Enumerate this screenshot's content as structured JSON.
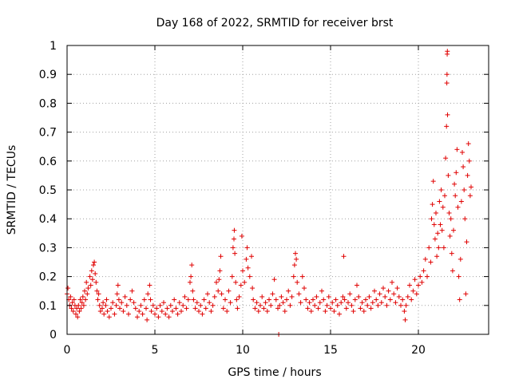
{
  "chart_data": {
    "type": "scatter",
    "title": "Day 168 of 2022, SRMTID for receiver brst",
    "xlabel": "GPS time / hours",
    "ylabel": "SRMTID / TECUs",
    "xlim": [
      0,
      24
    ],
    "ylim": [
      0,
      1
    ],
    "xticks": [
      0,
      5,
      10,
      15,
      20
    ],
    "xtick_labels": [
      "0",
      "5",
      "10",
      "15",
      "20"
    ],
    "yticks": [
      0,
      0.1,
      0.2,
      0.3,
      0.4,
      0.5,
      0.6,
      0.7,
      0.8,
      0.9,
      1
    ],
    "ytick_labels": [
      "0",
      "0.1",
      "0.2",
      "0.3",
      "0.4",
      "0.5",
      "0.6",
      "0.7",
      "0.8",
      "0.9",
      "1"
    ],
    "grid": true,
    "marker": "+",
    "color": "#e00000",
    "series": [
      {
        "name": "brst",
        "points": [
          [
            0.0,
            0.14
          ],
          [
            0.05,
            0.16
          ],
          [
            0.1,
            0.12
          ],
          [
            0.15,
            0.1
          ],
          [
            0.2,
            0.13
          ],
          [
            0.25,
            0.09
          ],
          [
            0.3,
            0.11
          ],
          [
            0.35,
            0.08
          ],
          [
            0.4,
            0.12
          ],
          [
            0.45,
            0.1
          ],
          [
            0.5,
            0.07
          ],
          [
            0.55,
            0.09
          ],
          [
            0.6,
            0.06
          ],
          [
            0.65,
            0.1
          ],
          [
            0.7,
            0.08
          ],
          [
            0.75,
            0.12
          ],
          [
            0.8,
            0.09
          ],
          [
            0.85,
            0.11
          ],
          [
            0.9,
            0.13
          ],
          [
            0.95,
            0.1
          ],
          [
            1.0,
            0.15
          ],
          [
            1.05,
            0.12
          ],
          [
            1.1,
            0.18
          ],
          [
            1.15,
            0.14
          ],
          [
            1.2,
            0.16
          ],
          [
            1.3,
            0.2
          ],
          [
            1.35,
            0.17
          ],
          [
            1.4,
            0.22
          ],
          [
            1.45,
            0.19
          ],
          [
            1.5,
            0.24
          ],
          [
            1.55,
            0.25
          ],
          [
            1.6,
            0.21
          ],
          [
            1.65,
            0.18
          ],
          [
            1.7,
            0.15
          ],
          [
            1.75,
            0.12
          ],
          [
            1.8,
            0.14
          ],
          [
            1.85,
            0.1
          ],
          [
            1.9,
            0.08
          ],
          [
            2.0,
            0.09
          ],
          [
            2.05,
            0.11
          ],
          [
            2.1,
            0.07
          ],
          [
            2.2,
            0.1
          ],
          [
            2.25,
            0.12
          ],
          [
            2.3,
            0.08
          ],
          [
            2.4,
            0.06
          ],
          [
            2.5,
            0.09
          ],
          [
            2.6,
            0.11
          ],
          [
            2.7,
            0.07
          ],
          [
            2.8,
            0.1
          ],
          [
            2.85,
            0.14
          ],
          [
            2.9,
            0.17
          ],
          [
            2.95,
            0.12
          ],
          [
            3.0,
            0.09
          ],
          [
            3.1,
            0.11
          ],
          [
            3.2,
            0.08
          ],
          [
            3.3,
            0.13
          ],
          [
            3.4,
            0.1
          ],
          [
            3.5,
            0.07
          ],
          [
            3.6,
            0.12
          ],
          [
            3.7,
            0.15
          ],
          [
            3.8,
            0.11
          ],
          [
            3.9,
            0.09
          ],
          [
            4.0,
            0.06
          ],
          [
            4.1,
            0.08
          ],
          [
            4.2,
            0.1
          ],
          [
            4.3,
            0.07
          ],
          [
            4.4,
            0.12
          ],
          [
            4.5,
            0.09
          ],
          [
            4.55,
            0.05
          ],
          [
            4.6,
            0.14
          ],
          [
            4.7,
            0.17
          ],
          [
            4.75,
            0.12
          ],
          [
            4.8,
            0.08
          ],
          [
            4.9,
            0.1
          ],
          [
            5.0,
            0.07
          ],
          [
            5.1,
            0.09
          ],
          [
            5.2,
            0.06
          ],
          [
            5.3,
            0.1
          ],
          [
            5.4,
            0.08
          ],
          [
            5.5,
            0.11
          ],
          [
            5.6,
            0.07
          ],
          [
            5.7,
            0.09
          ],
          [
            5.8,
            0.06
          ],
          [
            5.9,
            0.1
          ],
          [
            6.0,
            0.08
          ],
          [
            6.1,
            0.12
          ],
          [
            6.2,
            0.09
          ],
          [
            6.3,
            0.07
          ],
          [
            6.4,
            0.11
          ],
          [
            6.5,
            0.08
          ],
          [
            6.6,
            0.1
          ],
          [
            6.7,
            0.13
          ],
          [
            6.8,
            0.09
          ],
          [
            6.9,
            0.12
          ],
          [
            7.0,
            0.18
          ],
          [
            7.05,
            0.2
          ],
          [
            7.1,
            0.24
          ],
          [
            7.15,
            0.15
          ],
          [
            7.2,
            0.12
          ],
          [
            7.3,
            0.09
          ],
          [
            7.4,
            0.11
          ],
          [
            7.5,
            0.08
          ],
          [
            7.6,
            0.1
          ],
          [
            7.7,
            0.07
          ],
          [
            7.8,
            0.12
          ],
          [
            7.9,
            0.09
          ],
          [
            8.0,
            0.14
          ],
          [
            8.1,
            0.11
          ],
          [
            8.2,
            0.08
          ],
          [
            8.3,
            0.1
          ],
          [
            8.4,
            0.13
          ],
          [
            8.5,
            0.18
          ],
          [
            8.6,
            0.15
          ],
          [
            8.65,
            0.19
          ],
          [
            8.7,
            0.22
          ],
          [
            8.75,
            0.27
          ],
          [
            8.8,
            0.14
          ],
          [
            8.9,
            0.09
          ],
          [
            9.0,
            0.12
          ],
          [
            9.1,
            0.08
          ],
          [
            9.2,
            0.15
          ],
          [
            9.3,
            0.11
          ],
          [
            9.4,
            0.2
          ],
          [
            9.45,
            0.3
          ],
          [
            9.5,
            0.33
          ],
          [
            9.52,
            0.36
          ],
          [
            9.55,
            0.28
          ],
          [
            9.6,
            0.18
          ],
          [
            9.65,
            0.12
          ],
          [
            9.7,
            0.09
          ],
          [
            9.8,
            0.13
          ],
          [
            9.9,
            0.17
          ],
          [
            9.95,
            0.34
          ],
          [
            10.0,
            0.22
          ],
          [
            10.1,
            0.18
          ],
          [
            10.2,
            0.26
          ],
          [
            10.25,
            0.3
          ],
          [
            10.3,
            0.23
          ],
          [
            10.4,
            0.2
          ],
          [
            10.5,
            0.27
          ],
          [
            10.55,
            0.16
          ],
          [
            10.6,
            0.12
          ],
          [
            10.7,
            0.09
          ],
          [
            10.8,
            0.11
          ],
          [
            10.9,
            0.08
          ],
          [
            11.0,
            0.1
          ],
          [
            11.1,
            0.13
          ],
          [
            11.2,
            0.09
          ],
          [
            11.3,
            0.11
          ],
          [
            11.4,
            0.08
          ],
          [
            11.5,
            0.12
          ],
          [
            11.6,
            0.1
          ],
          [
            11.7,
            0.14
          ],
          [
            11.8,
            0.19
          ],
          [
            11.9,
            0.12
          ],
          [
            12.0,
            0.09
          ],
          [
            12.05,
            0.0
          ],
          [
            12.1,
            0.1
          ],
          [
            12.2,
            0.13
          ],
          [
            12.3,
            0.11
          ],
          [
            12.4,
            0.08
          ],
          [
            12.5,
            0.12
          ],
          [
            12.6,
            0.15
          ],
          [
            12.7,
            0.1
          ],
          [
            12.8,
            0.13
          ],
          [
            12.9,
            0.2
          ],
          [
            12.95,
            0.24
          ],
          [
            13.0,
            0.28
          ],
          [
            13.05,
            0.26
          ],
          [
            13.1,
            0.18
          ],
          [
            13.2,
            0.14
          ],
          [
            13.3,
            0.11
          ],
          [
            13.4,
            0.2
          ],
          [
            13.5,
            0.16
          ],
          [
            13.6,
            0.12
          ],
          [
            13.7,
            0.09
          ],
          [
            13.8,
            0.11
          ],
          [
            13.9,
            0.08
          ],
          [
            14.0,
            0.12
          ],
          [
            14.1,
            0.1
          ],
          [
            14.2,
            0.13
          ],
          [
            14.3,
            0.09
          ],
          [
            14.4,
            0.11
          ],
          [
            14.5,
            0.15
          ],
          [
            14.6,
            0.12
          ],
          [
            14.7,
            0.08
          ],
          [
            14.8,
            0.1
          ],
          [
            14.9,
            0.13
          ],
          [
            15.0,
            0.09
          ],
          [
            15.1,
            0.11
          ],
          [
            15.2,
            0.08
          ],
          [
            15.3,
            0.12
          ],
          [
            15.4,
            0.1
          ],
          [
            15.5,
            0.07
          ],
          [
            15.6,
            0.11
          ],
          [
            15.7,
            0.13
          ],
          [
            15.75,
            0.27
          ],
          [
            15.8,
            0.12
          ],
          [
            15.9,
            0.09
          ],
          [
            16.0,
            0.11
          ],
          [
            16.1,
            0.14
          ],
          [
            16.2,
            0.1
          ],
          [
            16.3,
            0.08
          ],
          [
            16.4,
            0.12
          ],
          [
            16.5,
            0.17
          ],
          [
            16.6,
            0.13
          ],
          [
            16.7,
            0.09
          ],
          [
            16.8,
            0.11
          ],
          [
            16.9,
            0.08
          ],
          [
            17.0,
            0.12
          ],
          [
            17.1,
            0.1
          ],
          [
            17.2,
            0.13
          ],
          [
            17.3,
            0.09
          ],
          [
            17.4,
            0.11
          ],
          [
            17.5,
            0.15
          ],
          [
            17.6,
            0.12
          ],
          [
            17.7,
            0.1
          ],
          [
            17.8,
            0.14
          ],
          [
            17.9,
            0.11
          ],
          [
            18.0,
            0.16
          ],
          [
            18.1,
            0.13
          ],
          [
            18.2,
            0.1
          ],
          [
            18.3,
            0.15
          ],
          [
            18.4,
            0.12
          ],
          [
            18.5,
            0.18
          ],
          [
            18.6,
            0.14
          ],
          [
            18.7,
            0.11
          ],
          [
            18.8,
            0.16
          ],
          [
            18.9,
            0.13
          ],
          [
            19.0,
            0.1
          ],
          [
            19.1,
            0.12
          ],
          [
            19.2,
            0.08
          ],
          [
            19.25,
            0.05
          ],
          [
            19.3,
            0.1
          ],
          [
            19.4,
            0.13
          ],
          [
            19.5,
            0.17
          ],
          [
            19.6,
            0.12
          ],
          [
            19.7,
            0.15
          ],
          [
            19.8,
            0.19
          ],
          [
            19.9,
            0.14
          ],
          [
            20.0,
            0.17
          ],
          [
            20.1,
            0.2
          ],
          [
            20.2,
            0.18
          ],
          [
            20.3,
            0.22
          ],
          [
            20.4,
            0.26
          ],
          [
            20.5,
            0.2
          ],
          [
            20.6,
            0.3
          ],
          [
            20.7,
            0.25
          ],
          [
            20.75,
            0.4
          ],
          [
            20.8,
            0.45
          ],
          [
            20.85,
            0.53
          ],
          [
            20.9,
            0.38
          ],
          [
            20.95,
            0.33
          ],
          [
            21.0,
            0.42
          ],
          [
            21.05,
            0.27
          ],
          [
            21.1,
            0.35
          ],
          [
            21.15,
            0.3
          ],
          [
            21.2,
            0.46
          ],
          [
            21.25,
            0.38
          ],
          [
            21.3,
            0.5
          ],
          [
            21.35,
            0.36
          ],
          [
            21.4,
            0.44
          ],
          [
            21.45,
            0.3
          ],
          [
            21.5,
            0.48
          ],
          [
            21.55,
            0.61
          ],
          [
            21.6,
            0.72
          ],
          [
            21.62,
            0.87
          ],
          [
            21.63,
            0.9
          ],
          [
            21.64,
            0.97
          ],
          [
            21.65,
            0.98
          ],
          [
            21.66,
            0.76
          ],
          [
            21.7,
            0.55
          ],
          [
            21.75,
            0.42
          ],
          [
            21.8,
            0.34
          ],
          [
            21.85,
            0.4
          ],
          [
            21.9,
            0.28
          ],
          [
            21.95,
            0.22
          ],
          [
            22.0,
            0.36
          ],
          [
            22.05,
            0.52
          ],
          [
            22.1,
            0.48
          ],
          [
            22.15,
            0.56
          ],
          [
            22.2,
            0.64
          ],
          [
            22.25,
            0.44
          ],
          [
            22.3,
            0.2
          ],
          [
            22.35,
            0.12
          ],
          [
            22.4,
            0.26
          ],
          [
            22.45,
            0.46
          ],
          [
            22.5,
            0.63
          ],
          [
            22.55,
            0.58
          ],
          [
            22.6,
            0.5
          ],
          [
            22.65,
            0.4
          ],
          [
            22.7,
            0.14
          ],
          [
            22.75,
            0.32
          ],
          [
            22.8,
            0.55
          ],
          [
            22.85,
            0.66
          ],
          [
            22.9,
            0.6
          ],
          [
            22.95,
            0.48
          ],
          [
            23.0,
            0.51
          ]
        ]
      }
    ]
  }
}
